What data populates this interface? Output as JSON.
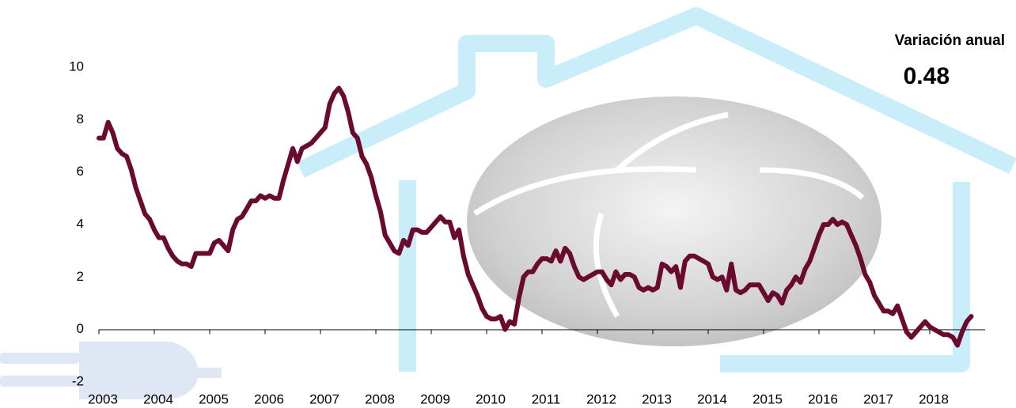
{
  "chart_data": {
    "type": "line",
    "annotation": {
      "label": "Variación anual",
      "value": 0.48
    },
    "categories": [
      "2003",
      null,
      null,
      null,
      null,
      null,
      null,
      null,
      null,
      null,
      null,
      null,
      "2004",
      null,
      null,
      null,
      null,
      null,
      null,
      null,
      null,
      null,
      null,
      null,
      "2005",
      null,
      null,
      null,
      null,
      null,
      null,
      null,
      null,
      null,
      null,
      null,
      "2006",
      null,
      null,
      null,
      null,
      null,
      null,
      null,
      null,
      null,
      null,
      null,
      "2007",
      null,
      null,
      null,
      null,
      null,
      null,
      null,
      null,
      null,
      null,
      null,
      "2008",
      null,
      null,
      null,
      null,
      null,
      null,
      null,
      null,
      null,
      null,
      null,
      "2009",
      null,
      null,
      null,
      null,
      null,
      null,
      null,
      null,
      null,
      null,
      null,
      "2010",
      null,
      null,
      null,
      null,
      null,
      null,
      null,
      null,
      null,
      null,
      null,
      "2011",
      null,
      null,
      null,
      null,
      null,
      null,
      null,
      null,
      null,
      null,
      null,
      "2012",
      null,
      null,
      null,
      null,
      null,
      null,
      null,
      null,
      null,
      null,
      null,
      "2013",
      null,
      null,
      null,
      null,
      null,
      null,
      null,
      null,
      null,
      null,
      null,
      "2014",
      null,
      null,
      null,
      null,
      null,
      null,
      null,
      null,
      null,
      null,
      null,
      "2015",
      null,
      null,
      null,
      null,
      null,
      null,
      null,
      null,
      null,
      null,
      null,
      "2016",
      null,
      null,
      null,
      null,
      null,
      null,
      null,
      null,
      null,
      null,
      null,
      "2017",
      null,
      null,
      null,
      null,
      null,
      null,
      null,
      null,
      null,
      null,
      null,
      "2018",
      null,
      null,
      null,
      null,
      null,
      null,
      null,
      null,
      null
    ],
    "values": [
      7.3,
      7.3,
      7.9,
      7.5,
      6.9,
      6.7,
      6.6,
      6.1,
      5.4,
      4.9,
      4.4,
      4.2,
      3.8,
      3.5,
      3.5,
      3.1,
      2.8,
      2.6,
      2.5,
      2.5,
      2.4,
      2.9,
      2.9,
      2.9,
      2.9,
      3.3,
      3.4,
      3.2,
      3.0,
      3.8,
      4.2,
      4.3,
      4.6,
      4.9,
      4.9,
      5.1,
      5.0,
      5.1,
      5.0,
      5.0,
      5.7,
      6.3,
      6.9,
      6.4,
      6.9,
      7.0,
      7.1,
      7.3,
      7.5,
      7.7,
      8.6,
      9.0,
      9.2,
      8.9,
      8.3,
      7.5,
      7.3,
      6.6,
      6.3,
      5.8,
      5.1,
      4.5,
      3.6,
      3.3,
      3.0,
      2.9,
      3.4,
      3.2,
      3.8,
      3.8,
      3.7,
      3.7,
      3.9,
      4.1,
      4.3,
      4.1,
      4.1,
      3.5,
      3.8,
      2.8,
      2.1,
      1.7,
      1.3,
      0.8,
      0.5,
      0.4,
      0.4,
      0.5,
      0.0,
      0.3,
      0.2,
      1.2,
      2.0,
      2.2,
      2.2,
      2.5,
      2.7,
      2.7,
      2.6,
      3.0,
      2.6,
      3.1,
      2.9,
      2.4,
      2.0,
      1.9,
      2.0,
      2.1,
      2.2,
      2.2,
      1.9,
      1.7,
      2.2,
      1.9,
      2.1,
      2.1,
      2.0,
      1.6,
      1.5,
      1.6,
      1.5,
      1.6,
      2.5,
      2.4,
      2.2,
      2.4,
      1.6,
      2.6,
      2.8,
      2.8,
      2.7,
      2.6,
      2.5,
      2.0,
      1.9,
      2.0,
      1.5,
      2.5,
      1.5,
      1.4,
      1.5,
      1.7,
      1.7,
      1.7,
      1.4,
      1.1,
      1.4,
      1.3,
      1.0,
      1.5,
      1.7,
      2.0,
      1.8,
      2.3,
      2.6,
      3.1,
      3.6,
      4.0,
      4.0,
      4.2,
      4.0,
      4.1,
      4.0,
      3.6,
      3.2,
      2.7,
      2.1,
      1.8,
      1.3,
      1.0,
      0.7,
      0.7,
      0.6,
      0.9,
      0.4,
      -0.1,
      -0.3,
      -0.1,
      0.1,
      0.3,
      0.1,
      0.0,
      -0.1,
      -0.2,
      -0.2,
      -0.3,
      -0.6,
      -0.1,
      0.3,
      0.5
    ],
    "color": "#6a0a2e",
    "ylim": [
      -2,
      10
    ],
    "yticks": [
      -2,
      0,
      2,
      4,
      6,
      8,
      10
    ]
  }
}
